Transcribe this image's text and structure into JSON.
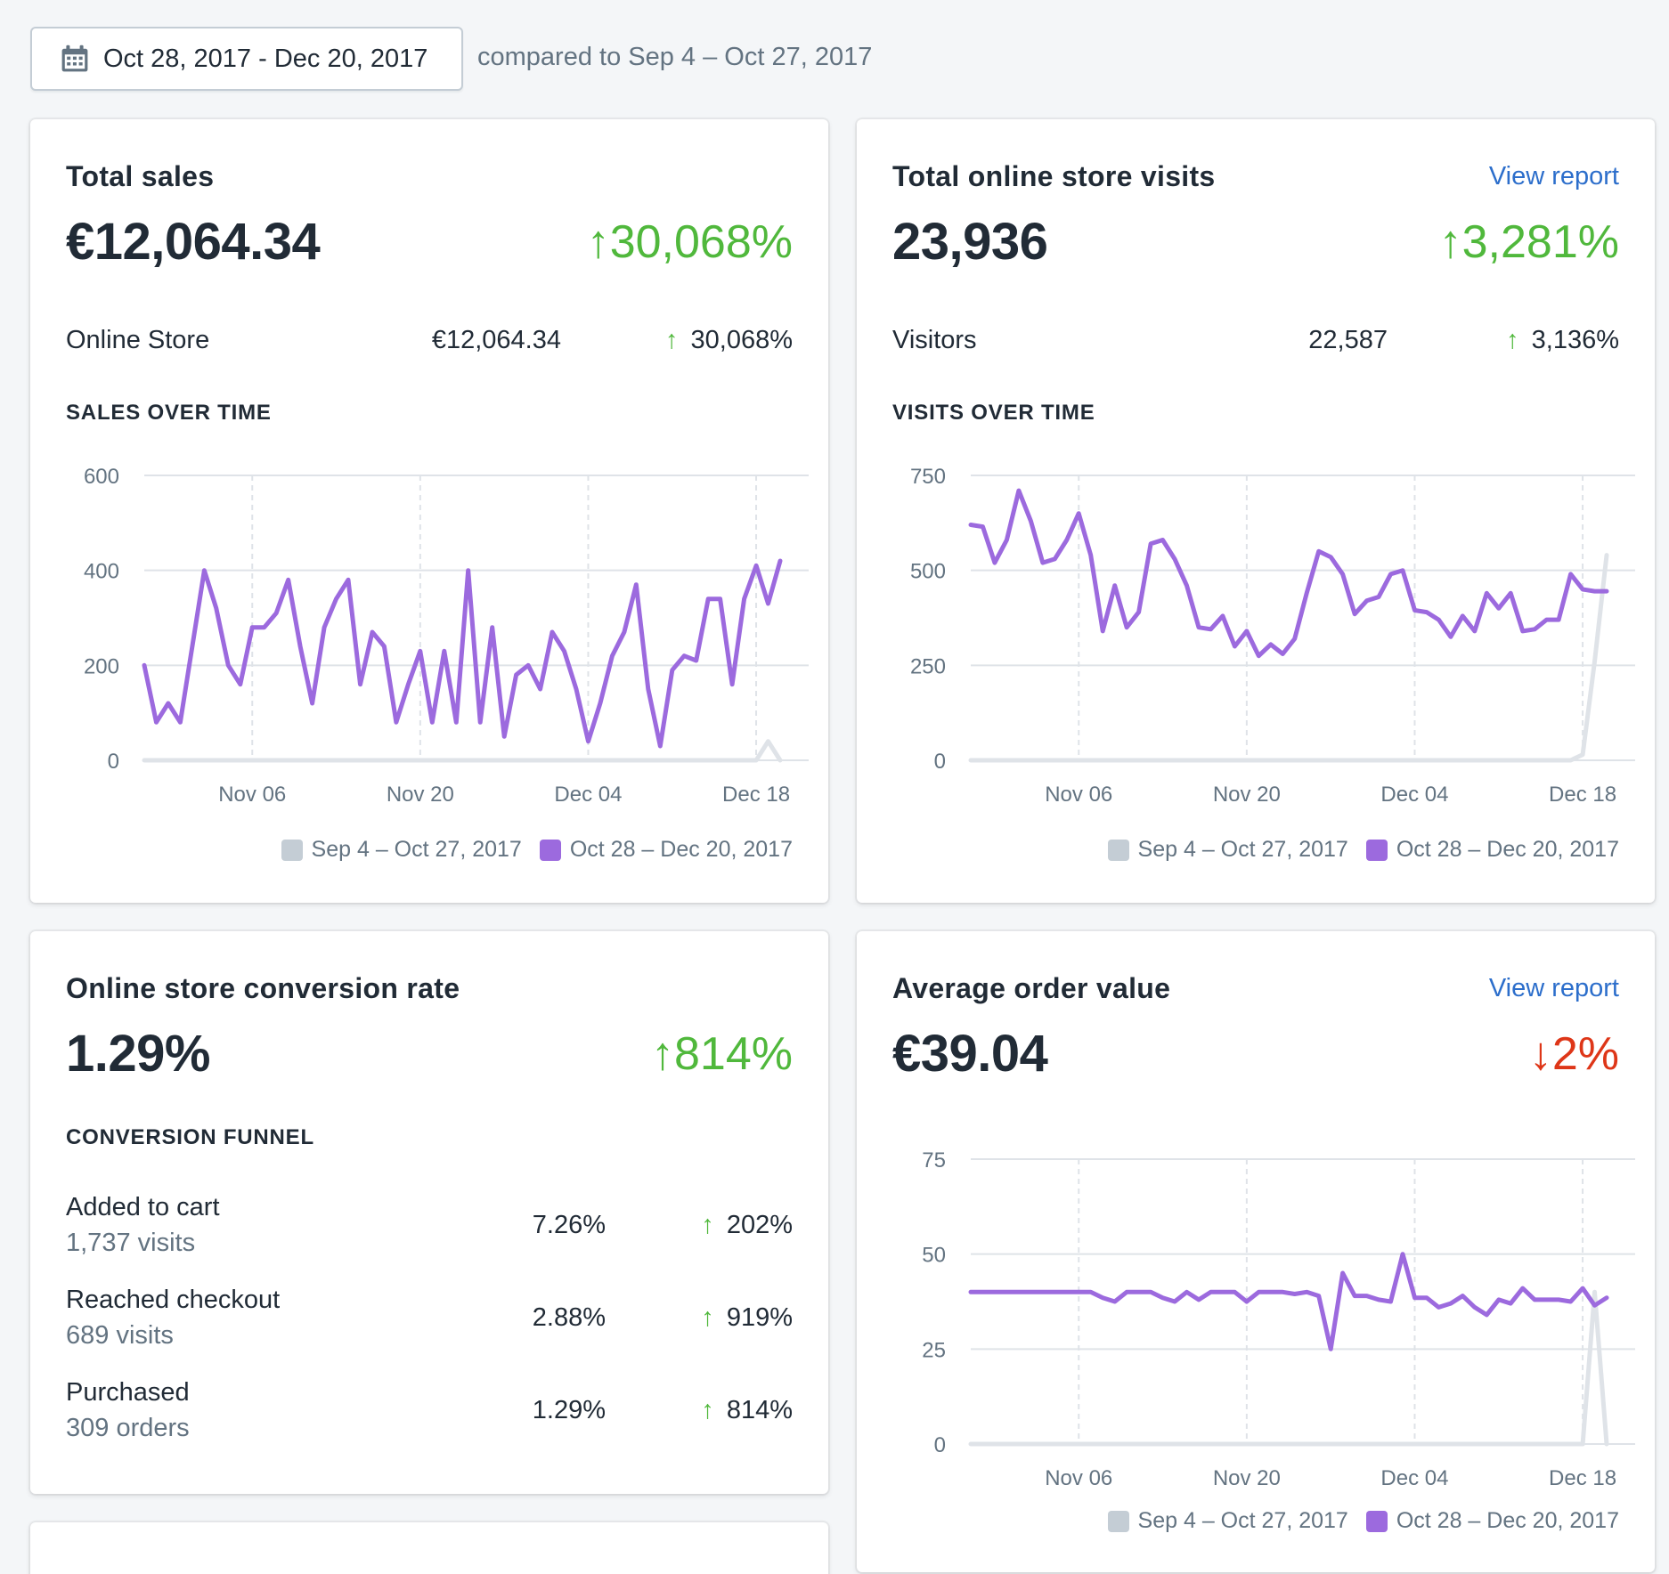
{
  "date_range": {
    "label": "Oct 28, 2017 - Dec 20, 2017",
    "compare": "compared to Sep 4 – Oct 27, 2017"
  },
  "colors": {
    "current": "#9c6ade",
    "previous": "#dfe3e8",
    "positive": "#50b83c",
    "negative": "#de3618",
    "link": "#2c6ecb"
  },
  "legend": {
    "previous": "Sep 4 – Oct 27, 2017",
    "current": "Oct 28 – Dec 20, 2017"
  },
  "total_sales": {
    "title": "Total sales",
    "value": "€12,064.34",
    "change": "30,068%",
    "change_direction": "up",
    "row": {
      "label": "Online Store",
      "value": "€12,064.34",
      "change": "30,068%"
    },
    "section": "SALES OVER TIME"
  },
  "total_visits": {
    "title": "Total online store visits",
    "link": "View report",
    "value": "23,936",
    "change": "3,281%",
    "change_direction": "up",
    "row": {
      "label": "Visitors",
      "value": "22,587",
      "change": "3,136%"
    },
    "section": "VISITS OVER TIME"
  },
  "conversion": {
    "title": "Online store conversion rate",
    "value": "1.29%",
    "change": "814%",
    "change_direction": "up",
    "section": "CONVERSION FUNNEL",
    "funnel": [
      {
        "label": "Added to cart",
        "sub": "1,737 visits",
        "rate": "7.26%",
        "change": "202%"
      },
      {
        "label": "Reached checkout",
        "sub": "689 visits",
        "rate": "2.88%",
        "change": "919%"
      },
      {
        "label": "Purchased",
        "sub": "309 orders",
        "rate": "1.29%",
        "change": "814%"
      }
    ]
  },
  "aov": {
    "title": "Average order value",
    "link": "View report",
    "value": "€39.04",
    "change": "2%",
    "change_direction": "down"
  },
  "chart_data": [
    {
      "type": "line",
      "title": "SALES OVER TIME",
      "ylim": [
        0,
        600
      ],
      "yticks": [
        "600",
        "400",
        "200",
        "0"
      ],
      "xticks": [
        "Nov 06",
        "Nov 20",
        "Dec 04",
        "Dec 18"
      ],
      "grid": true,
      "legend_position": "bottom-right",
      "series": [
        {
          "name": "Sep 4 – Oct 27, 2017",
          "values": [
            0,
            0,
            0,
            0,
            0,
            0,
            0,
            0,
            0,
            0,
            0,
            0,
            0,
            0,
            0,
            0,
            0,
            0,
            0,
            0,
            0,
            0,
            0,
            0,
            0,
            0,
            0,
            0,
            0,
            0,
            0,
            0,
            0,
            0,
            0,
            0,
            0,
            0,
            0,
            0,
            0,
            0,
            0,
            0,
            0,
            0,
            0,
            0,
            0,
            0,
            0,
            0,
            40,
            0
          ]
        },
        {
          "name": "Oct 28 – Dec 20, 2017",
          "values": [
            200,
            80,
            120,
            80,
            240,
            400,
            320,
            200,
            160,
            280,
            280,
            310,
            380,
            240,
            120,
            280,
            340,
            380,
            160,
            270,
            240,
            80,
            160,
            230,
            80,
            230,
            80,
            400,
            80,
            280,
            50,
            180,
            200,
            150,
            270,
            230,
            150,
            40,
            120,
            220,
            270,
            370,
            150,
            30,
            190,
            220,
            210,
            340,
            340,
            160,
            340,
            410,
            330,
            420
          ]
        }
      ]
    },
    {
      "type": "line",
      "title": "VISITS OVER TIME",
      "ylim": [
        0,
        750
      ],
      "yticks": [
        "750",
        "500",
        "250",
        "0"
      ],
      "xticks": [
        "Nov 06",
        "Nov 20",
        "Dec 04",
        "Dec 18"
      ],
      "grid": true,
      "legend_position": "bottom-right",
      "series": [
        {
          "name": "Sep 4 – Oct 27, 2017",
          "values": [
            0,
            0,
            0,
            0,
            0,
            0,
            0,
            0,
            0,
            0,
            0,
            0,
            0,
            0,
            0,
            0,
            0,
            0,
            0,
            0,
            0,
            0,
            0,
            0,
            0,
            0,
            0,
            0,
            0,
            0,
            0,
            0,
            0,
            0,
            0,
            0,
            0,
            0,
            0,
            0,
            0,
            0,
            0,
            0,
            0,
            0,
            0,
            0,
            0,
            0,
            0,
            15,
            260,
            540
          ]
        },
        {
          "name": "Oct 28 – Dec 20, 2017",
          "values": [
            620,
            615,
            520,
            580,
            710,
            630,
            520,
            530,
            580,
            650,
            540,
            340,
            460,
            350,
            390,
            570,
            580,
            530,
            460,
            350,
            345,
            380,
            300,
            340,
            275,
            305,
            280,
            320,
            440,
            550,
            535,
            490,
            385,
            420,
            430,
            490,
            500,
            395,
            390,
            370,
            325,
            380,
            340,
            440,
            400,
            440,
            340,
            345,
            370,
            370,
            490,
            450,
            445,
            445
          ]
        }
      ]
    },
    {
      "type": "line",
      "title": "Average order value",
      "ylim": [
        0,
        75
      ],
      "yticks": [
        "75",
        "50",
        "25",
        "0"
      ],
      "xticks": [
        "Nov 06",
        "Nov 20",
        "Dec 04",
        "Dec 18"
      ],
      "grid": true,
      "legend_position": "bottom-right",
      "series": [
        {
          "name": "Sep 4 – Oct 27, 2017",
          "values": [
            0,
            0,
            0,
            0,
            0,
            0,
            0,
            0,
            0,
            0,
            0,
            0,
            0,
            0,
            0,
            0,
            0,
            0,
            0,
            0,
            0,
            0,
            0,
            0,
            0,
            0,
            0,
            0,
            0,
            0,
            0,
            0,
            0,
            0,
            0,
            0,
            0,
            0,
            0,
            0,
            0,
            0,
            0,
            0,
            0,
            0,
            0,
            0,
            0,
            0,
            0,
            0,
            40,
            0
          ]
        },
        {
          "name": "Oct 28 – Dec 20, 2017",
          "values": [
            40,
            40,
            40,
            40,
            40,
            40,
            40,
            40,
            40,
            40,
            40,
            38.5,
            37.5,
            40,
            40,
            40,
            38.5,
            37.5,
            40,
            38,
            40,
            40,
            40,
            37.5,
            40,
            40,
            40,
            39.5,
            40,
            39,
            25,
            45,
            39,
            39,
            38,
            37.5,
            50,
            38.5,
            38.5,
            36,
            37,
            39,
            36,
            34,
            38,
            37,
            41,
            38,
            38,
            38,
            37.5,
            41,
            36.5,
            38.5
          ]
        }
      ]
    }
  ]
}
